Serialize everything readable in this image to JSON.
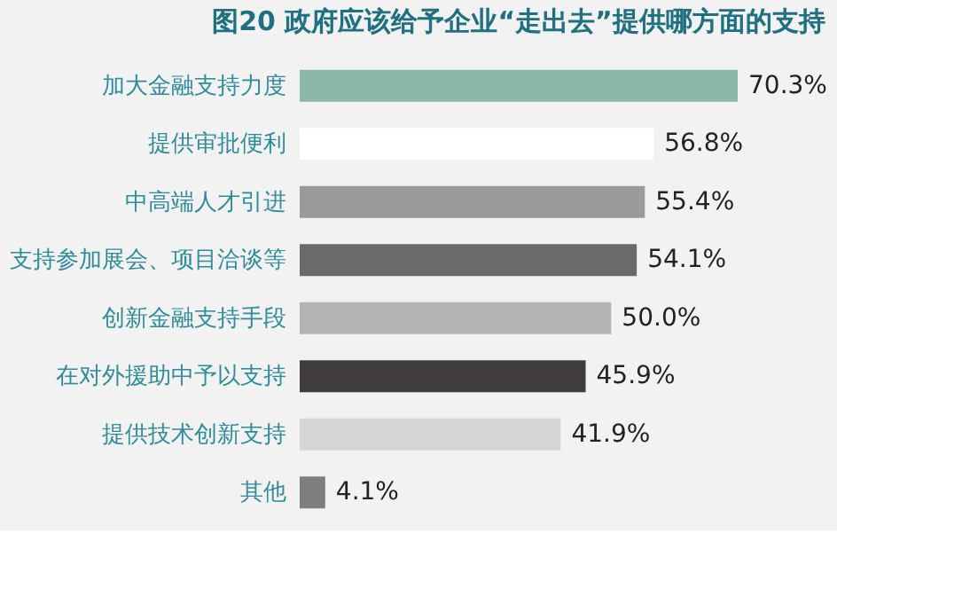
{
  "chart_data": {
    "type": "bar",
    "orientation": "horizontal",
    "title": "图20 政府应该给予企业“走出去”提供哪方面的支持",
    "categories": [
      "加大金融支持力度",
      "提供审批便利",
      "中高端人才引进",
      "支持参加展会、项目洽谈等",
      "创新金融支持手段",
      "在对外援助中予以支持",
      "提供技术创新支持",
      "其他"
    ],
    "values": [
      70.3,
      56.8,
      55.4,
      54.1,
      50.0,
      45.9,
      41.9,
      4.1
    ],
    "value_labels": [
      "70.3%",
      "56.8%",
      "55.4%",
      "54.1%",
      "50.0%",
      "45.9%",
      "41.9%",
      "4.1%"
    ],
    "colors": [
      "#8cb8aa",
      "#ffffff",
      "#9a9a9a",
      "#6a6a6a",
      "#b4b4b4",
      "#403c3c",
      "#d6d6d6",
      "#7e7e7e"
    ],
    "grid": false
  }
}
